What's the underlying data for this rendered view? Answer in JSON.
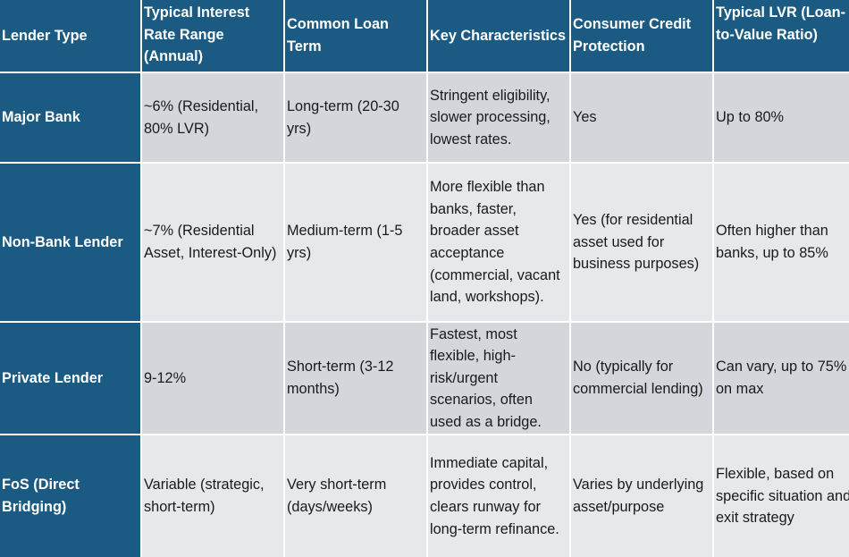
{
  "colors": {
    "header_bg": "#1b5a82",
    "header_text": "#ffffff",
    "row_band_a": "#d3d6db",
    "row_band_b": "#e6e8ec",
    "body_text": "#1a1a1a"
  },
  "table": {
    "headers": [
      "Lender Type",
      "Typical Interest Rate Range (Annual)",
      "Common Loan Term",
      "Key Characteristics",
      "Consumer Credit Protection",
      "Typical LVR (Loan-to-Value Ratio)"
    ],
    "rows": [
      {
        "lender_type": "Major Bank",
        "rate": "~6% (Residential, 80% LVR)",
        "term": "Long-term (20-30 yrs)",
        "characteristics": "Stringent eligibility, slower processing, lowest rates.",
        "protection": "Yes",
        "lvr": "Up to 80%"
      },
      {
        "lender_type": "Non-Bank Lender",
        "rate": "~7% (Residential Asset, Interest-Only)",
        "term": "Medium-term (1-5 yrs)",
        "characteristics": "More flexible than banks, faster, broader asset acceptance (commercial, vacant land, workshops).",
        "protection": "Yes (for residential asset used for business purposes)",
        "lvr": "Often higher than banks, up to 85%"
      },
      {
        "lender_type": "Private Lender",
        "rate": "9-12%",
        "term": "Short-term (3-12 months)",
        "characteristics": "Fastest, most flexible, high-risk/urgent scenarios, often used as a bridge.",
        "protection": "No (typically for commercial lending)",
        "lvr": "Can vary, up to 75% on max"
      },
      {
        "lender_type": "FoS (Direct Bridging)",
        "rate": "Variable (strategic, short-term)",
        "term": "Very short-term (days/weeks)",
        "characteristics": "Immediate capital, provides control, clears runway for long-term refinance.",
        "protection": "Varies by underlying asset/purpose",
        "lvr": "Flexible, based on specific situation and exit strategy"
      }
    ]
  }
}
